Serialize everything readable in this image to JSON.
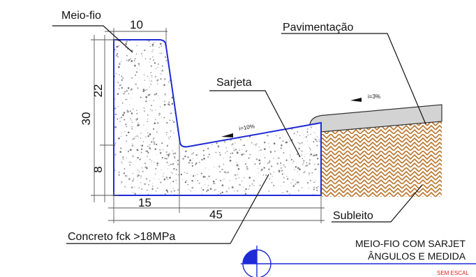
{
  "labels": {
    "curb": "Meio-fio",
    "paving": "Pavimentação",
    "gutter": "Sarjeta",
    "subgrade": "Subleito",
    "concrete": "Concreto fck >18MPa"
  },
  "dimensions": {
    "top_width": "10",
    "total_height": "30",
    "upper_height": "22",
    "lower_height": "8",
    "curb_base": "15",
    "total_width": "45"
  },
  "slopes": {
    "gutter": "i=10%",
    "paving": "i=3%"
  },
  "title_block": {
    "line1": "MEIO-FIO COM SARJET",
    "line2": "ÂNGULOS E MEDIDA",
    "scale": "SEM ESCAL"
  },
  "colors": {
    "outline": "#1f2bd6",
    "subgrade_hatch": "#b8742a",
    "paving_fill": "#d3d3d3",
    "scale_text": "#e0201b"
  }
}
